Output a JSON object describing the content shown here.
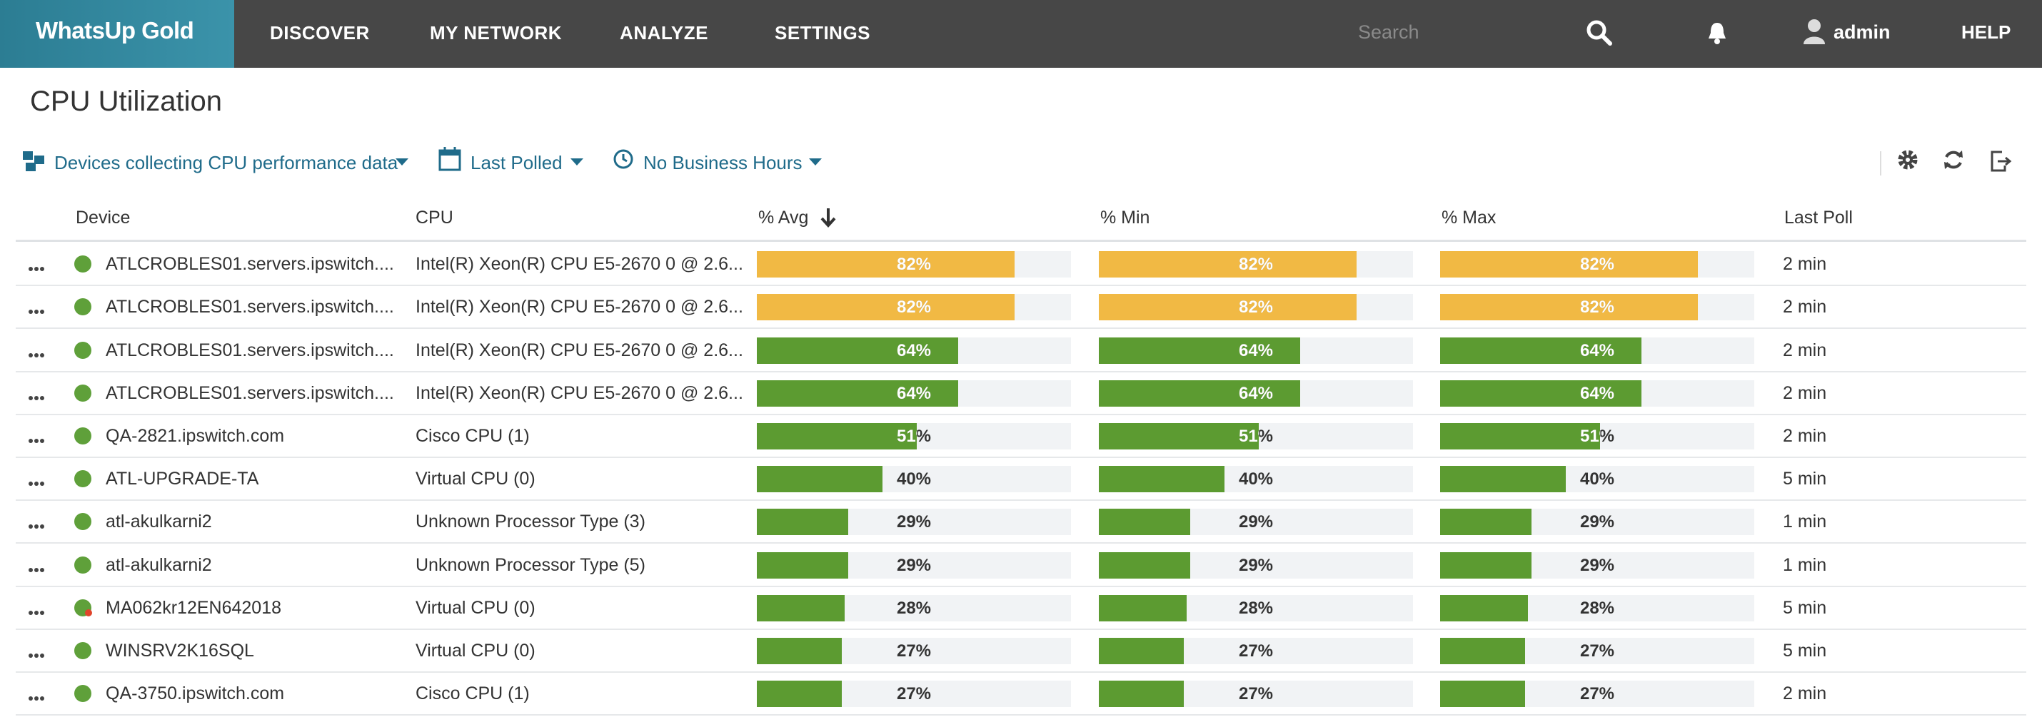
{
  "nav": {
    "logo": "WhatsUp Gold",
    "items": [
      "DISCOVER",
      "MY NETWORK",
      "ANALYZE",
      "SETTINGS"
    ],
    "active": 2,
    "search_placeholder": "Search",
    "user": "admin",
    "help": "HELP"
  },
  "page": {
    "title": "CPU Utilization",
    "filters": [
      "Devices collecting CPU performance data",
      "Last Polled",
      "No Business Hours"
    ]
  },
  "table": {
    "headers": [
      "Device",
      "CPU",
      "% Avg",
      "% Min",
      "% Max",
      "Last Poll"
    ],
    "rows": [
      {
        "device": "ATLCROBLES01.servers.ipswitch....",
        "cpu": "Intel(R) Xeon(R) CPU E5-2670 0 @ 2.6...",
        "avg": 82,
        "avg_label": "82%",
        "min": 82,
        "min_label": "82%",
        "max": 82,
        "max_label": "82%",
        "last_poll": "2 min",
        "color": "#f1b944",
        "alert": false
      },
      {
        "device": "ATLCROBLES01.servers.ipswitch....",
        "cpu": "Intel(R) Xeon(R) CPU E5-2670 0 @ 2.6...",
        "avg": 82,
        "avg_label": "82%",
        "min": 82,
        "min_label": "82%",
        "max": 82,
        "max_label": "82%",
        "last_poll": "2 min",
        "color": "#f1b944",
        "alert": false
      },
      {
        "device": "ATLCROBLES01.servers.ipswitch....",
        "cpu": "Intel(R) Xeon(R) CPU E5-2670 0 @ 2.6...",
        "avg": 64,
        "avg_label": "64%",
        "min": 64,
        "min_label": "64%",
        "max": 64,
        "max_label": "64%",
        "last_poll": "2 min",
        "color": "#5c9b31",
        "alert": false
      },
      {
        "device": "ATLCROBLES01.servers.ipswitch....",
        "cpu": "Intel(R) Xeon(R) CPU E5-2670 0 @ 2.6...",
        "avg": 64,
        "avg_label": "64%",
        "min": 64,
        "min_label": "64%",
        "max": 64,
        "max_label": "64%",
        "last_poll": "2 min",
        "color": "#5c9b31",
        "alert": false
      },
      {
        "device": "QA-2821.ipswitch.com",
        "cpu": "Cisco CPU (1)",
        "avg": 51,
        "avg_label": "51%",
        "min": 51,
        "min_label": "51%",
        "max": 51,
        "max_label": "51%",
        "last_poll": "2 min",
        "color": "#5c9b31",
        "alert": false
      },
      {
        "device": "ATL-UPGRADE-TA",
        "cpu": "Virtual CPU (0)",
        "avg": 40,
        "avg_label": "40%",
        "min": 40,
        "min_label": "40%",
        "max": 40,
        "max_label": "40%",
        "last_poll": "5 min",
        "color": "#5c9b31",
        "alert": false
      },
      {
        "device": "atl-akulkarni2",
        "cpu": "Unknown Processor Type (3)",
        "avg": 29,
        "avg_label": "29%",
        "min": 29,
        "min_label": "29%",
        "max": 29,
        "max_label": "29%",
        "last_poll": "1 min",
        "color": "#5c9b31",
        "alert": false
      },
      {
        "device": "atl-akulkarni2",
        "cpu": "Unknown Processor Type (5)",
        "avg": 29,
        "avg_label": "29%",
        "min": 29,
        "min_label": "29%",
        "max": 29,
        "max_label": "29%",
        "last_poll": "1 min",
        "color": "#5c9b31",
        "alert": false
      },
      {
        "device": "MA062kr12EN642018",
        "cpu": "Virtual CPU (0)",
        "avg": 28,
        "avg_label": "28%",
        "min": 28,
        "min_label": "28%",
        "max": 28,
        "max_label": "28%",
        "last_poll": "5 min",
        "color": "#5c9b31",
        "alert": true
      },
      {
        "device": "WINSRV2K16SQL",
        "cpu": "Virtual CPU (0)",
        "avg": 27,
        "avg_label": "27%",
        "min": 27,
        "min_label": "27%",
        "max": 27,
        "max_label": "27%",
        "last_poll": "5 min",
        "color": "#5c9b31",
        "alert": false
      },
      {
        "device": "QA-3750.ipswitch.com",
        "cpu": "Cisco CPU (1)",
        "avg": 27,
        "avg_label": "27%",
        "min": 27,
        "min_label": "27%",
        "max": 27,
        "max_label": "27%",
        "last_poll": "2 min",
        "color": "#5c9b31",
        "alert": false
      }
    ]
  }
}
